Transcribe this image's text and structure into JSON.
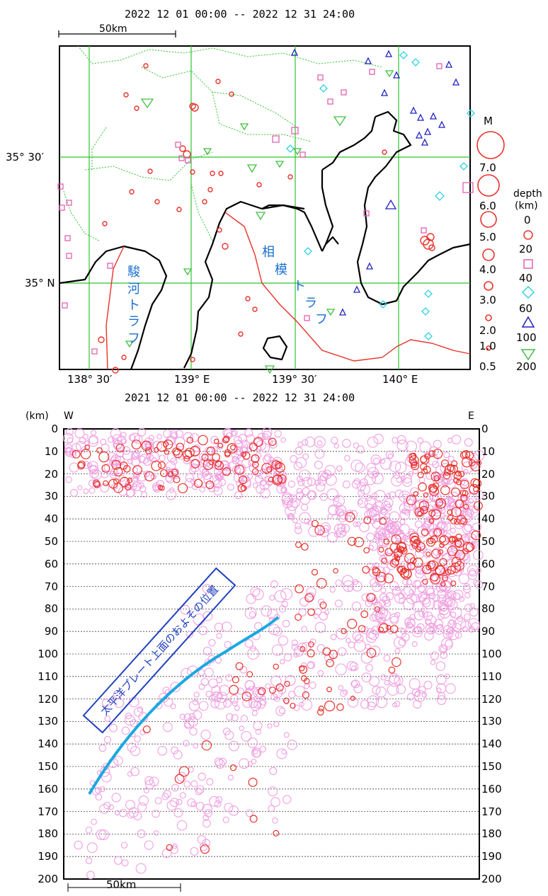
{
  "map": {
    "period": "2022 12 01 00:00 -- 2022 12 31 24:00",
    "scale_label": "50km",
    "lat_labels": [
      "35° 30′",
      "35° N"
    ],
    "lon_labels": [
      "138° 30′",
      "139° E",
      "139° 30′",
      "140° E"
    ],
    "trough_labels": {
      "sagami": [
        "相",
        "模",
        "ト",
        "ラ",
        "フ"
      ],
      "suruga": [
        "駿",
        "河",
        "ト",
        "ラ",
        "フ"
      ]
    }
  },
  "legend": {
    "magnitude_title": "M",
    "magnitudes": [
      "7.0",
      "6.0",
      "5.0",
      "4.0",
      "3.0",
      "2.0",
      "1.0",
      "0.5"
    ],
    "depth_title": "depth",
    "depth_unit": "(km)",
    "depths": [
      "0",
      "20",
      "40",
      "60",
      "100",
      "200"
    ],
    "depth_colors": {
      "0": "#e8322a",
      "20": "#e060b0",
      "40": "#e060b0",
      "60": "#30d0e0",
      "100": "#2020c0",
      "200": "#40c040"
    }
  },
  "section": {
    "period": "2021 12 01 00:00 -- 2022 12 31 24:00",
    "unit_label": "(km)",
    "west_label": "W",
    "east_label": "E",
    "depth_ticks": [
      "0",
      "10",
      "20",
      "30",
      "40",
      "50",
      "60",
      "70",
      "80",
      "90",
      "100",
      "110",
      "120",
      "130",
      "140",
      "150",
      "160",
      "170",
      "180",
      "190",
      "200"
    ],
    "scale_label": "50km",
    "annotation": "太平洋プレート上面のおよその位置",
    "colors": {
      "recent": "#e8322a",
      "past": "#f0a0e0",
      "plate_line": "#1aa8e0",
      "annotation_box": "#2040c0"
    }
  }
}
